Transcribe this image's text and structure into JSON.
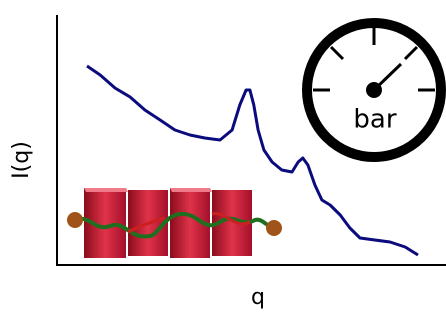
{
  "chart_data": {
    "type": "line",
    "x_label": "q",
    "y_label": "I(q)",
    "annotation": "bar",
    "x": [
      7.7,
      11.1,
      14.9,
      18.8,
      22.6,
      26.5,
      30.3,
      34.2,
      38.0,
      41.9,
      45.0,
      47.0,
      48.6,
      49.6,
      50.6,
      51.7,
      53.2,
      55.3,
      57.8,
      60.4,
      62.0,
      63.2,
      64.5,
      66.3,
      68.1,
      70.2,
      72.8,
      75.3,
      77.9,
      81.7,
      85.6,
      89.5,
      92.8
    ],
    "series": [
      {
        "color": "#0b0b7d",
        "values": [
          79.6,
          76,
          70.8,
          67.2,
          62,
          58,
          54,
          52,
          50.8,
          50,
          54,
          64,
          70,
          70,
          64,
          54,
          46,
          41.2,
          38,
          37.2,
          41.2,
          42.8,
          40,
          32,
          26,
          24,
          20,
          14.8,
          10.8,
          10,
          9.2,
          7.2,
          4
        ]
      }
    ],
    "xlim": [
      0,
      100
    ],
    "ylim": [
      0,
      100
    ]
  }
}
